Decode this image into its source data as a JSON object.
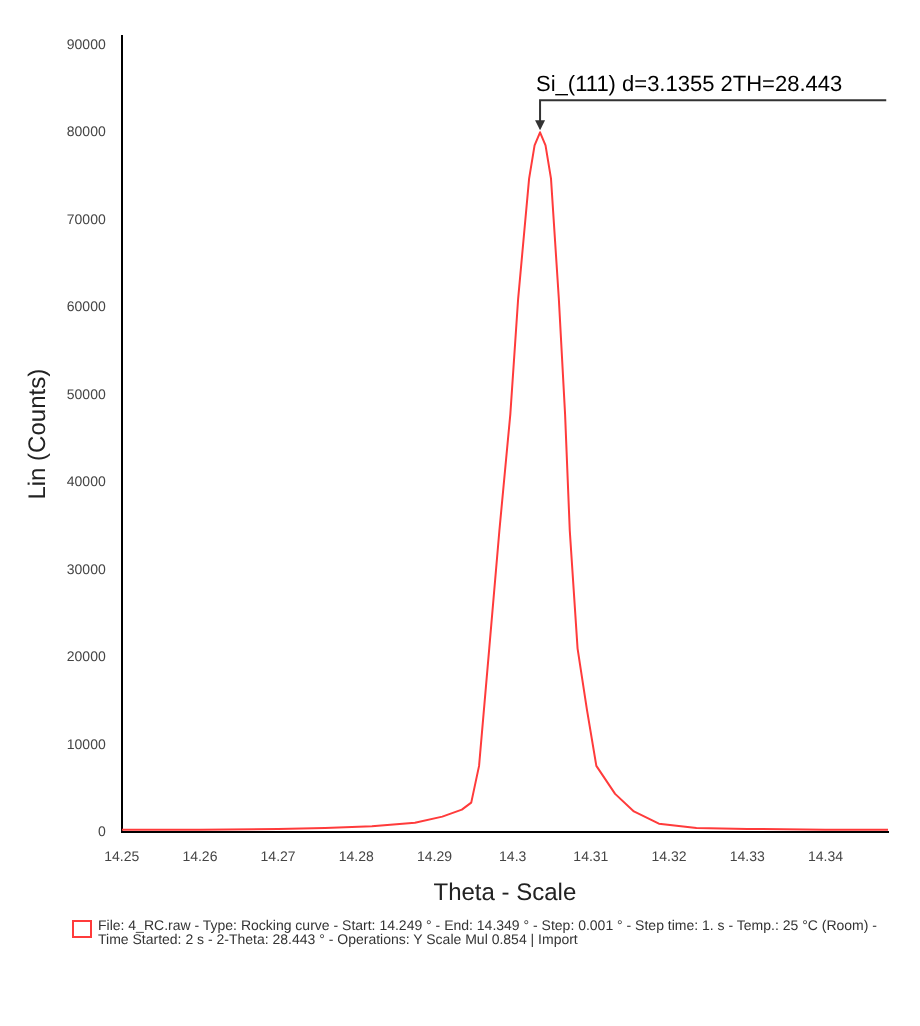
{
  "chart_data": {
    "type": "line",
    "xlabel": "Theta - Scale",
    "ylabel": "Lin (Counts)",
    "xlim": [
      14.25,
      14.348
    ],
    "ylim": [
      0,
      91000
    ],
    "xticks": [
      14.25,
      14.26,
      14.27,
      14.28,
      14.29,
      14.3,
      14.31,
      14.32,
      14.33,
      14.34
    ],
    "yticks": [
      0,
      10000,
      20000,
      30000,
      40000,
      50000,
      60000,
      70000,
      80000,
      90000
    ],
    "grid": false,
    "legend": false,
    "marker": "none",
    "line_style": "solid",
    "series": [
      {
        "color": "#ff3b3b",
        "x": [
          14.25,
          14.26,
          14.27,
          14.276,
          14.282,
          14.2875,
          14.291,
          14.2935,
          14.2947,
          14.2957,
          14.297,
          14.2983,
          14.2997,
          14.3007,
          14.3021,
          14.3028,
          14.3035,
          14.3042,
          14.3049,
          14.3059,
          14.3067,
          14.3073,
          14.3083,
          14.3095,
          14.3107,
          14.3131,
          14.3155,
          14.3187,
          14.3235,
          14.33,
          14.34,
          14.348
        ],
        "values": [
          300,
          300,
          400,
          500,
          700,
          1100,
          1800,
          2600,
          3400,
          7600,
          21000,
          34500,
          47800,
          61000,
          74700,
          78500,
          80000,
          78500,
          74700,
          61000,
          47800,
          34500,
          21000,
          14000,
          7600,
          4400,
          2400,
          1000,
          500,
          400,
          300,
          300
        ]
      }
    ],
    "annotations": [
      {
        "text": "Si_(111) d=3.1355 2TH=28.443",
        "x": 14.3035,
        "y": 80000
      },
      "File: 4_RC.raw - Type: Rocking curve - Start: 14.249 ° - End: 14.349 ° - Step: 0.001 ° - Step time: 1. s - Temp.: 25 °C (Room) - Time Started: 2 s - 2-Theta: 28.443 ° - Operations: Y Scale Mul 0.854 | Import"
    ]
  }
}
